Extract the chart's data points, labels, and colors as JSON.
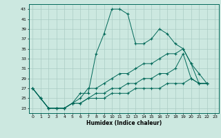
{
  "xlabel": "Humidex (Indice chaleur)",
  "bg_color": "#cce8e0",
  "grid_color": "#aaccc4",
  "line_color": "#006858",
  "xlim": [
    -0.5,
    23.5
  ],
  "ylim": [
    22,
    44
  ],
  "xticks": [
    0,
    1,
    2,
    3,
    4,
    5,
    6,
    7,
    8,
    9,
    10,
    11,
    12,
    13,
    14,
    15,
    16,
    17,
    18,
    19,
    20,
    21,
    22,
    23
  ],
  "yticks": [
    23,
    25,
    27,
    29,
    31,
    33,
    35,
    37,
    39,
    41,
    43
  ],
  "series": [
    {
      "x": [
        0,
        1,
        2,
        3,
        4,
        5,
        6,
        7,
        8,
        9,
        10,
        11,
        12,
        13,
        14,
        15,
        16,
        17,
        18,
        19,
        20,
        21,
        22,
        23
      ],
      "y": [
        27,
        25,
        23,
        23,
        23,
        24,
        26,
        26,
        34,
        38,
        43,
        43,
        42,
        36,
        36,
        37,
        39,
        38,
        36,
        35,
        32,
        30,
        28,
        null
      ]
    },
    {
      "x": [
        0,
        1,
        2,
        3,
        4,
        5,
        6,
        7,
        8,
        9,
        10,
        11,
        12,
        13,
        14,
        15,
        16,
        17,
        18,
        19,
        20,
        21,
        22,
        23
      ],
      "y": [
        27,
        25,
        23,
        23,
        23,
        24,
        25,
        27,
        27,
        28,
        29,
        30,
        30,
        31,
        32,
        32,
        33,
        34,
        34,
        35,
        32,
        28,
        28,
        null
      ]
    },
    {
      "x": [
        0,
        1,
        2,
        3,
        4,
        5,
        6,
        7,
        8,
        9,
        10,
        11,
        12,
        13,
        14,
        15,
        16,
        17,
        18,
        19,
        20,
        21,
        22,
        23
      ],
      "y": [
        27,
        25,
        23,
        23,
        23,
        24,
        24,
        25,
        26,
        26,
        27,
        27,
        28,
        28,
        29,
        29,
        30,
        30,
        31,
        34,
        29,
        28,
        28,
        null
      ]
    },
    {
      "x": [
        0,
        1,
        2,
        3,
        4,
        5,
        6,
        7,
        8,
        9,
        10,
        11,
        12,
        13,
        14,
        15,
        16,
        17,
        18,
        19,
        20,
        21,
        22,
        23
      ],
      "y": [
        27,
        25,
        23,
        23,
        23,
        24,
        24,
        25,
        25,
        25,
        26,
        26,
        26,
        27,
        27,
        27,
        27,
        28,
        28,
        28,
        29,
        28,
        28,
        null
      ]
    }
  ]
}
